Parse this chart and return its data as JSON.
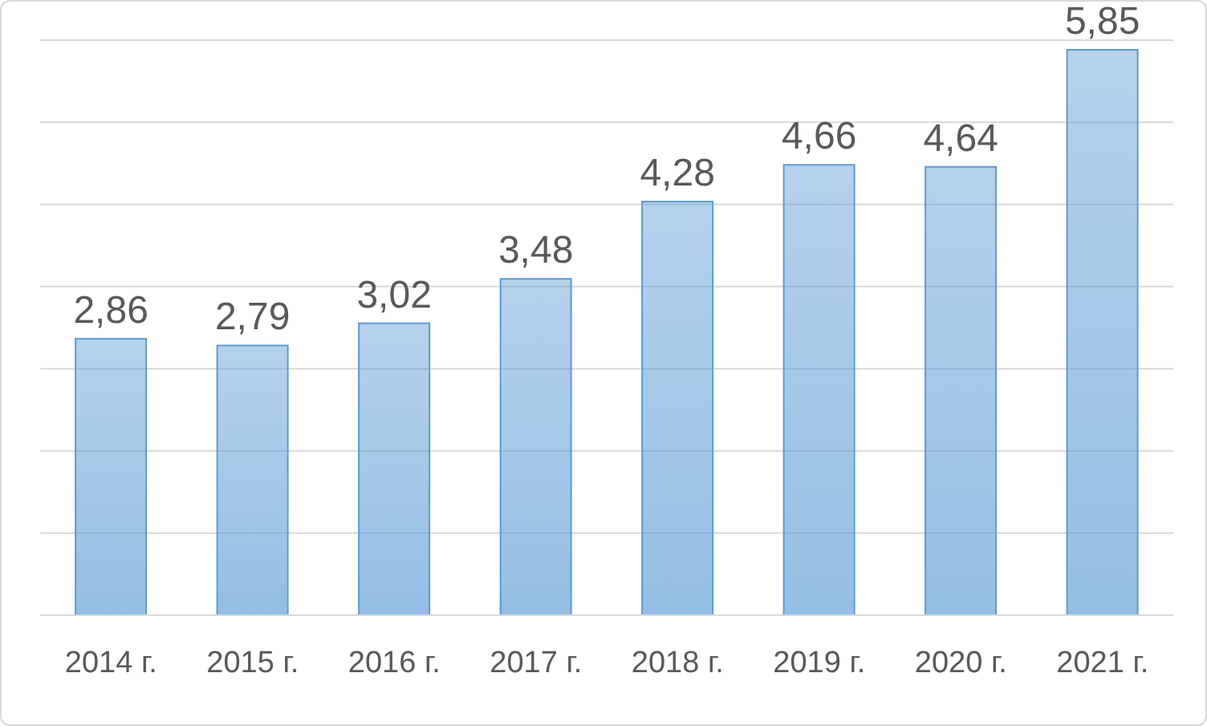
{
  "chart_data": {
    "type": "bar",
    "categories": [
      "2014 г.",
      "2015 г.",
      "2016 г.",
      "2017 г.",
      "2018 г.",
      "2019 г.",
      "2020 г.",
      "2021 г."
    ],
    "values": [
      2.86,
      2.79,
      3.02,
      3.48,
      4.28,
      4.66,
      4.64,
      5.85
    ],
    "value_labels": [
      "2,86",
      "2,79",
      "3,02",
      "3,48",
      "4,28",
      "4,66",
      "4,64",
      "5,85"
    ],
    "color": "#5b9bd5",
    "tick_labels": "x",
    "grid": "y"
  }
}
